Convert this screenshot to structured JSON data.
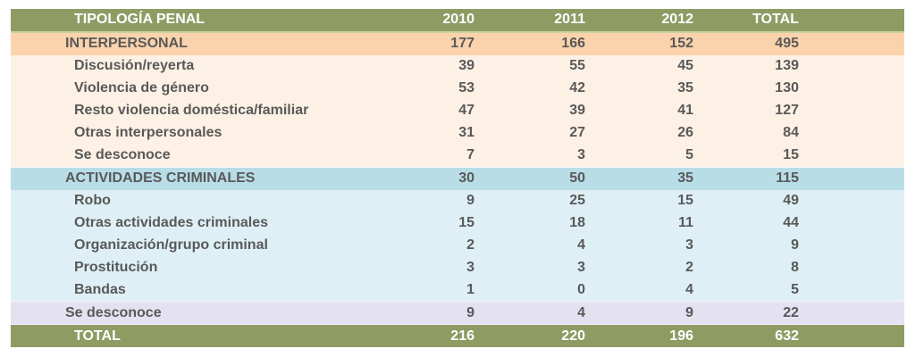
{
  "table": {
    "columns": [
      "TIPOLOGÍA PENAL",
      "2010",
      "2011",
      "2012",
      "TOTAL"
    ],
    "rows": [
      {
        "label": "INTERPERSONAL",
        "values": [
          "177",
          "166",
          "152",
          "495"
        ],
        "kind": "section-interpersonal"
      },
      {
        "label": "Discusión/reyerta",
        "values": [
          "39",
          "55",
          "45",
          "139"
        ],
        "kind": "item-interpersonal"
      },
      {
        "label": "Violencia de género",
        "values": [
          "53",
          "42",
          "35",
          "130"
        ],
        "kind": "item-interpersonal"
      },
      {
        "label": "Resto violencia doméstica/familiar",
        "values": [
          "47",
          "39",
          "41",
          "127"
        ],
        "kind": "item-interpersonal"
      },
      {
        "label": "Otras interpersonales",
        "values": [
          "31",
          "27",
          "26",
          "84"
        ],
        "kind": "item-interpersonal"
      },
      {
        "label": "Se desconoce",
        "values": [
          "7",
          "3",
          "5",
          "15"
        ],
        "kind": "item-interpersonal"
      },
      {
        "label": "ACTIVIDADES CRIMINALES",
        "values": [
          "30",
          "50",
          "35",
          "115"
        ],
        "kind": "section-criminal"
      },
      {
        "label": "Robo",
        "values": [
          "9",
          "25",
          "15",
          "49"
        ],
        "kind": "item-criminal"
      },
      {
        "label": "Otras actividades criminales",
        "values": [
          "15",
          "18",
          "11",
          "44"
        ],
        "kind": "item-criminal"
      },
      {
        "label": "Organización/grupo criminal",
        "values": [
          "2",
          "4",
          "3",
          "9"
        ],
        "kind": "item-criminal"
      },
      {
        "label": "Prostitución",
        "values": [
          "3",
          "3",
          "2",
          "8"
        ],
        "kind": "item-criminal"
      },
      {
        "label": "Bandas",
        "values": [
          "1",
          "0",
          "4",
          "5"
        ],
        "kind": "item-criminal"
      },
      {
        "label": "Se desconoce",
        "values": [
          "9",
          "4",
          "9",
          "22"
        ],
        "kind": "unknown"
      },
      {
        "label": "TOTAL",
        "values": [
          "216",
          "220",
          "196",
          "632"
        ],
        "kind": "total"
      }
    ]
  },
  "chart_data": {
    "type": "table",
    "title": "TIPOLOGÍA PENAL",
    "categories": [
      "2010",
      "2011",
      "2012",
      "TOTAL"
    ],
    "series": [
      {
        "name": "INTERPERSONAL",
        "values": [
          177,
          166,
          152,
          495
        ]
      },
      {
        "name": "Discusión/reyerta",
        "values": [
          39,
          55,
          45,
          139
        ]
      },
      {
        "name": "Violencia de género",
        "values": [
          53,
          42,
          35,
          130
        ]
      },
      {
        "name": "Resto violencia doméstica/familiar",
        "values": [
          47,
          39,
          41,
          127
        ]
      },
      {
        "name": "Otras interpersonales",
        "values": [
          31,
          27,
          26,
          84
        ]
      },
      {
        "name": "Se desconoce (interpersonal)",
        "values": [
          7,
          3,
          5,
          15
        ]
      },
      {
        "name": "ACTIVIDADES CRIMINALES",
        "values": [
          30,
          50,
          35,
          115
        ]
      },
      {
        "name": "Robo",
        "values": [
          9,
          25,
          15,
          49
        ]
      },
      {
        "name": "Otras actividades criminales",
        "values": [
          15,
          18,
          11,
          44
        ]
      },
      {
        "name": "Organización/grupo criminal",
        "values": [
          2,
          4,
          3,
          9
        ]
      },
      {
        "name": "Prostitución",
        "values": [
          3,
          3,
          2,
          8
        ]
      },
      {
        "name": "Bandas",
        "values": [
          1,
          0,
          4,
          5
        ]
      },
      {
        "name": "Se desconoce",
        "values": [
          9,
          4,
          9,
          22
        ]
      },
      {
        "name": "TOTAL",
        "values": [
          216,
          220,
          196,
          632
        ]
      }
    ]
  },
  "colors": {
    "header_bg": "#8e9c64",
    "header_divider": "#cbd2a2",
    "header_text": "#ffffff",
    "body_text": "#595959",
    "interpersonal_section_bg": "#fad3ac",
    "interpersonal_item_bg": "#fdf0e5",
    "criminal_section_bg": "#b9dde7",
    "criminal_item_bg": "#def0f5",
    "unknown_bg": "#e4e1f0",
    "total_bg": "#8e9c64"
  }
}
